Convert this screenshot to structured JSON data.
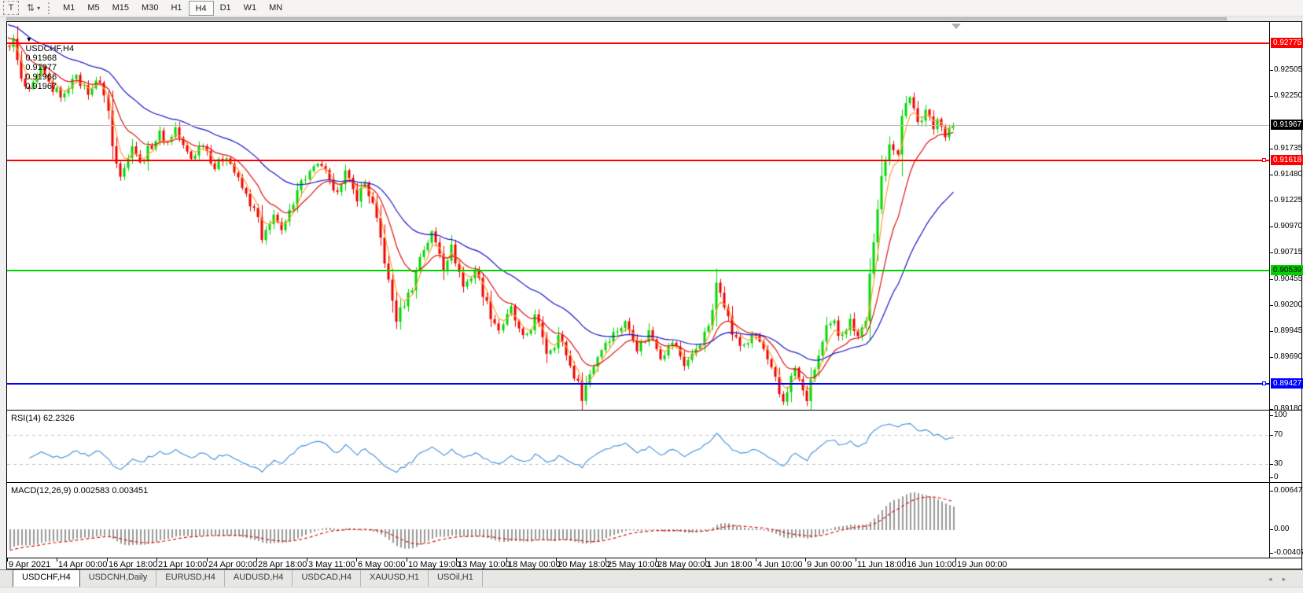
{
  "icons": {
    "dropdown": "▼",
    "caret": "▾",
    "updown": "⇅",
    "left_arrow": "◄",
    "right_arrow": "►"
  },
  "toolbar": {
    "text_tool_label": "T",
    "timeframes": [
      "M1",
      "M5",
      "M15",
      "M30",
      "H1",
      "H4",
      "D1",
      "W1",
      "MN"
    ],
    "active_timeframe": "H4"
  },
  "chart_header": {
    "symbol": "USDCHF,H4",
    "open": "0.91968",
    "high": "0.91977",
    "low": "0.91966",
    "close": "0.91967"
  },
  "price_axis": {
    "ticks": [
      "0.92505",
      "0.92250",
      "0.91735",
      "0.91480",
      "0.91225",
      "0.90970",
      "0.90715",
      "0.90455",
      "0.90200",
      "0.89945",
      "0.89690",
      "0.89180"
    ],
    "current_price": {
      "label": "0.91967",
      "value": 0.91967,
      "bg": "#000000",
      "fg": "#ffffff",
      "line_color": "#b8b8b8"
    }
  },
  "levels": [
    {
      "label": "0.92775",
      "value": 0.92775,
      "color": "#ff0000",
      "text_color": "#ffffff",
      "thickness": 2,
      "handle": false
    },
    {
      "label": "0.91618",
      "value": 0.91618,
      "color": "#ff0000",
      "text_color": "#ffffff",
      "thickness": 2,
      "handle": true
    },
    {
      "label": "0.90539",
      "value": 0.90539,
      "color": "#00d200",
      "text_color": "#000000",
      "thickness": 2,
      "handle": false
    },
    {
      "label": "0.89427",
      "value": 0.89427,
      "color": "#0000ff",
      "text_color": "#ffffff",
      "thickness": 2,
      "handle": true
    }
  ],
  "x_axis": {
    "labels": [
      "9 Apr 2021",
      "14 Apr 00:00",
      "16 Apr 18:00",
      "21 Apr 10:00",
      "24 Apr 00:00",
      "28 Apr 18:00",
      "3 May 11:00",
      "6 May 00:00",
      "10 May 19:00",
      "13 May 10:00",
      "18 May 00:00",
      "20 May 18:00",
      "25 May 10:00",
      "28 May 00:00",
      "1 Jun 18:00",
      "4 Jun 10:00",
      "9 Jun 00:00",
      "11 Jun 18:00",
      "16 Jun 10:00",
      "19 Jun 00:00"
    ]
  },
  "rsi_panel": {
    "label": "RSI(14) 62.2326",
    "current_value": 62.2326,
    "axis_labels": [
      "100",
      "70",
      "30",
      "0"
    ],
    "axis_values": [
      100,
      70,
      30,
      0
    ],
    "dashed_levels": [
      70,
      30
    ],
    "line_color": "#3f8ede",
    "dash_color": "#c0c0c0"
  },
  "macd_panel": {
    "label": "MACD(12,26,9) 0.002583 0.003451",
    "macd_value": 0.002583,
    "signal_value": 0.003451,
    "axis_labels": [
      "0.006477",
      "0.00",
      "-0.004073"
    ],
    "axis_values": [
      0.006477,
      0,
      -0.004073
    ],
    "histogram_color": "#9a9a9a",
    "signal_color": "#dc1414"
  },
  "tabs": {
    "items": [
      "USDCHF,H4",
      "USDCNH,Daily",
      "EURUSD,H4",
      "AUDUSD,H4",
      "USDCAD,H4",
      "XAUUSD,H1",
      "USOil,H1"
    ],
    "active": "USDCHF,H4"
  },
  "chart_data": {
    "type": "candlestick",
    "symbol": "USDCHF",
    "timeframe": "H4",
    "price_min": 0.8917,
    "price_max": 0.9298,
    "candle_count": 240,
    "up_color": "#00d800",
    "down_color": "#f00000",
    "moving_averages": [
      {
        "name": "fast",
        "period": 4,
        "color": "#ffa030",
        "seed_offset": 0
      },
      {
        "name": "medium",
        "period": 12,
        "color": "#dc1414",
        "seed_offset": 0.0008
      },
      {
        "name": "slow",
        "period": 34,
        "color": "#1414c8",
        "seed_offset": 0.0021
      }
    ],
    "close_waypoints": [
      [
        0,
        0.9272
      ],
      [
        1,
        0.9277
      ],
      [
        2,
        0.9279
      ],
      [
        4,
        0.924
      ],
      [
        6,
        0.9228
      ],
      [
        9,
        0.925
      ],
      [
        12,
        0.9232
      ],
      [
        15,
        0.9225
      ],
      [
        17,
        0.9246
      ],
      [
        19,
        0.9238
      ],
      [
        21,
        0.923
      ],
      [
        24,
        0.9241
      ],
      [
        26,
        0.921
      ],
      [
        27,
        0.9176
      ],
      [
        29,
        0.915
      ],
      [
        31,
        0.9163
      ],
      [
        32,
        0.918
      ],
      [
        34,
        0.9158
      ],
      [
        36,
        0.9172
      ],
      [
        39,
        0.9188
      ],
      [
        41,
        0.918
      ],
      [
        43,
        0.9194
      ],
      [
        45,
        0.9175
      ],
      [
        47,
        0.9164
      ],
      [
        50,
        0.918
      ],
      [
        53,
        0.9155
      ],
      [
        56,
        0.9168
      ],
      [
        59,
        0.9142
      ],
      [
        62,
        0.912
      ],
      [
        64,
        0.9105
      ],
      [
        65,
        0.9082
      ],
      [
        67,
        0.9098
      ],
      [
        68,
        0.9112
      ],
      [
        70,
        0.909
      ],
      [
        72,
        0.911
      ],
      [
        74,
        0.9136
      ],
      [
        77,
        0.915
      ],
      [
        80,
        0.9158
      ],
      [
        82,
        0.914
      ],
      [
        83,
        0.9128
      ],
      [
        86,
        0.915
      ],
      [
        88,
        0.9132
      ],
      [
        89,
        0.9126
      ],
      [
        91,
        0.914
      ],
      [
        93,
        0.9118
      ],
      [
        95,
        0.9085
      ],
      [
        97,
        0.9042
      ],
      [
        99,
        0.9006
      ],
      [
        101,
        0.9022
      ],
      [
        103,
        0.9038
      ],
      [
        105,
        0.9068
      ],
      [
        108,
        0.909
      ],
      [
        110,
        0.9072
      ],
      [
        111,
        0.9058
      ],
      [
        113,
        0.9076
      ],
      [
        115,
        0.9052
      ],
      [
        116,
        0.9038
      ],
      [
        118,
        0.9048
      ],
      [
        119,
        0.9056
      ],
      [
        121,
        0.9032
      ],
      [
        123,
        0.901
      ],
      [
        125,
        0.8996
      ],
      [
        127,
        0.9008
      ],
      [
        128,
        0.9016
      ],
      [
        130,
        0.8994
      ],
      [
        131,
        0.8986
      ],
      [
        133,
        0.8998
      ],
      [
        134,
        0.9008
      ],
      [
        136,
        0.899
      ],
      [
        137,
        0.8974
      ],
      [
        139,
        0.8982
      ],
      [
        140,
        0.899
      ],
      [
        142,
        0.8972
      ],
      [
        143,
        0.896
      ],
      [
        145,
        0.8942
      ],
      [
        146,
        0.893
      ],
      [
        148,
        0.8952
      ],
      [
        150,
        0.897
      ],
      [
        152,
        0.8984
      ],
      [
        155,
        0.8996
      ],
      [
        157,
        0.9002
      ],
      [
        159,
        0.899
      ],
      [
        160,
        0.8978
      ],
      [
        162,
        0.8986
      ],
      [
        163,
        0.8994
      ],
      [
        165,
        0.898
      ],
      [
        166,
        0.897
      ],
      [
        168,
        0.8978
      ],
      [
        169,
        0.8984
      ],
      [
        171,
        0.897
      ],
      [
        172,
        0.8962
      ],
      [
        174,
        0.897
      ],
      [
        175,
        0.8978
      ],
      [
        177,
        0.899
      ],
      [
        179,
        0.9012
      ],
      [
        180,
        0.9042
      ],
      [
        181,
        0.9036
      ],
      [
        182,
        0.9022
      ],
      [
        184,
        0.8992
      ],
      [
        186,
        0.898
      ],
      [
        188,
        0.8984
      ],
      [
        190,
        0.899
      ],
      [
        192,
        0.8976
      ],
      [
        193,
        0.8964
      ],
      [
        195,
        0.8946
      ],
      [
        196,
        0.8932
      ],
      [
        197,
        0.8926
      ],
      [
        199,
        0.8948
      ],
      [
        200,
        0.8958
      ],
      [
        202,
        0.8934
      ],
      [
        203,
        0.8928
      ],
      [
        205,
        0.8958
      ],
      [
        207,
        0.8982
      ],
      [
        208,
        0.8996
      ],
      [
        210,
        0.9002
      ],
      [
        211,
        0.8992
      ],
      [
        213,
        0.8998
      ],
      [
        214,
        0.9004
      ],
      [
        216,
        0.8992
      ],
      [
        218,
        0.9004
      ],
      [
        219,
        0.9052
      ],
      [
        220,
        0.908
      ],
      [
        221,
        0.9112
      ],
      [
        222,
        0.9146
      ],
      [
        223,
        0.9164
      ],
      [
        224,
        0.918
      ],
      [
        225,
        0.9172
      ],
      [
        226,
        0.9166
      ],
      [
        227,
        0.9206
      ],
      [
        228,
        0.922
      ],
      [
        229,
        0.9226
      ],
      [
        230,
        0.9212
      ],
      [
        231,
        0.9198
      ],
      [
        232,
        0.9202
      ],
      [
        233,
        0.9212
      ],
      [
        234,
        0.9205
      ],
      [
        235,
        0.9195
      ],
      [
        236,
        0.9203
      ],
      [
        237,
        0.9196
      ],
      [
        238,
        0.9184
      ],
      [
        239,
        0.9194
      ],
      [
        240,
        0.91967
      ]
    ]
  }
}
